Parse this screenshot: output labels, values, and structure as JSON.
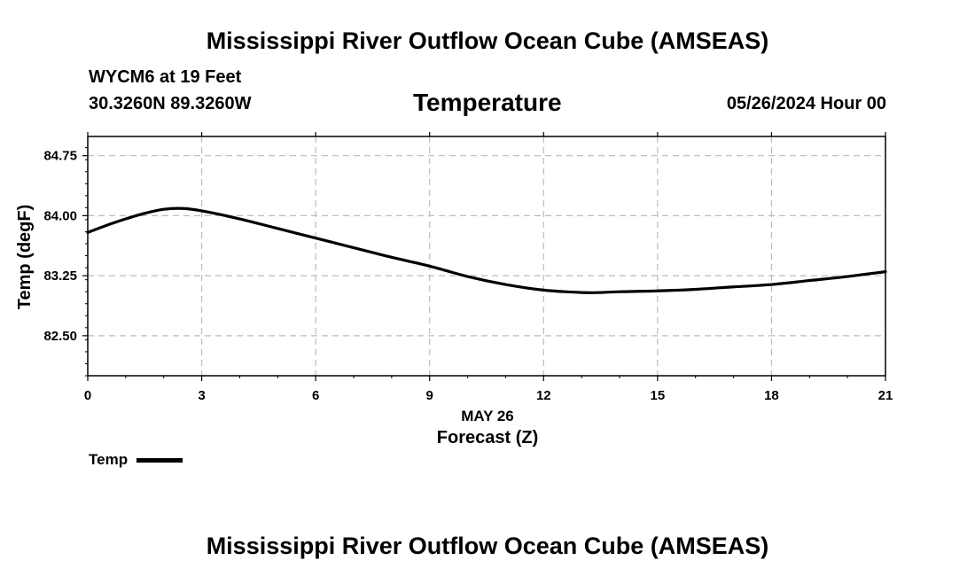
{
  "page": {
    "main_title": "Mississippi River Outflow Ocean Cube (AMSEAS)",
    "station_line": "WYCM6 at 19 Feet",
    "coords_line": "30.3260N  89.3260W",
    "chart_title": "Temperature",
    "datetime": "05/26/2024 Hour 00",
    "footer_title": "Mississippi River Outflow Ocean Cube (AMSEAS)"
  },
  "colors": {
    "line": "#000000",
    "grid": "#bbbbbb",
    "background": "#ffffff"
  },
  "chart_data": {
    "type": "line",
    "title": "Temperature",
    "xlabel": "Forecast (Z)",
    "xsublabel": "MAY 26",
    "ylabel": "Temp (degF)",
    "xlim": [
      0,
      21
    ],
    "ylim": [
      82.0,
      84.99
    ],
    "x_ticks": [
      0,
      3,
      6,
      9,
      12,
      15,
      18,
      21
    ],
    "y_ticks": [
      82.5,
      83.25,
      84.0,
      84.75
    ],
    "y_tick_labels": [
      "82.50",
      "83.25",
      "84.00",
      "84.75"
    ],
    "grid": true,
    "legend": {
      "position": "bottom-left",
      "entries": [
        {
          "name": "Temp",
          "color": "#000000"
        }
      ]
    },
    "series": [
      {
        "name": "Temp",
        "x": [
          0,
          0.5,
          1,
          1.5,
          2,
          2.5,
          3,
          4,
          5,
          6,
          7,
          8,
          9,
          10,
          11,
          12,
          13,
          13.5,
          14,
          15,
          16,
          17,
          18,
          19,
          20,
          21
        ],
        "values": [
          83.79,
          83.88,
          83.96,
          84.03,
          84.08,
          84.09,
          84.06,
          83.96,
          83.84,
          83.72,
          83.6,
          83.48,
          83.37,
          83.24,
          83.14,
          83.07,
          83.04,
          83.04,
          83.05,
          83.06,
          83.08,
          83.11,
          83.14,
          83.19,
          83.24,
          83.3
        ]
      }
    ]
  }
}
